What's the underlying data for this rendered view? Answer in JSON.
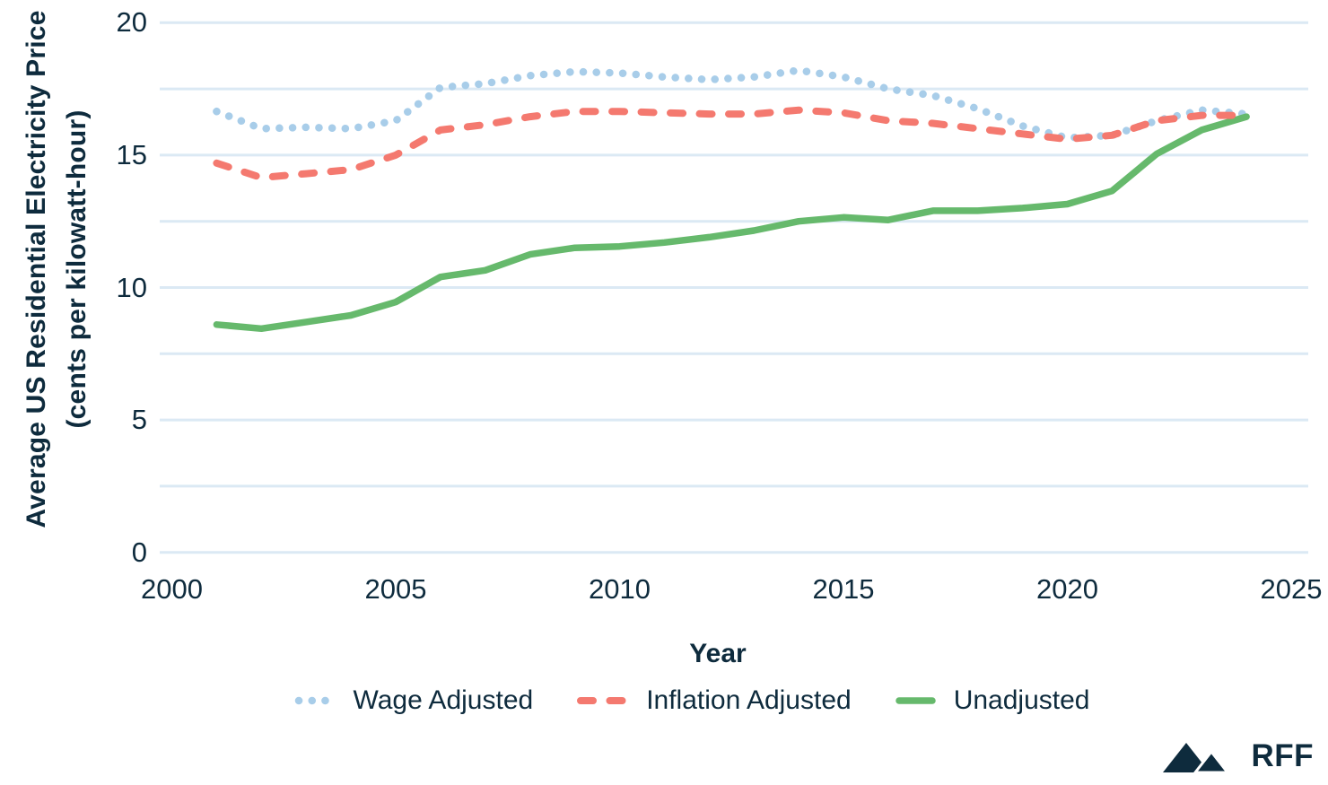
{
  "chart_data": {
    "type": "line",
    "title": "",
    "ylabel_line1": "Average US Residential Electricity Price",
    "ylabel_line2": "(cents per kilowatt-hour)",
    "xlabel": "Year",
    "xlim": [
      2000,
      2025
    ],
    "ylim": [
      0,
      20
    ],
    "x_ticks": [
      2000,
      2005,
      2010,
      2015,
      2020,
      2025
    ],
    "y_ticks": [
      0,
      5,
      10,
      15,
      20
    ],
    "gridline_step": 2.5,
    "grid": "horizontal gridlines only, light blue",
    "legend_position": "bottom center",
    "years": [
      2001,
      2002,
      2003,
      2004,
      2005,
      2006,
      2007,
      2008,
      2009,
      2010,
      2011,
      2012,
      2013,
      2014,
      2015,
      2016,
      2017,
      2018,
      2019,
      2020,
      2021,
      2022,
      2023,
      2024
    ],
    "series": [
      {
        "name": "Wage Adjusted",
        "style": "dotted",
        "color": "#a8cde9",
        "values": [
          16.65,
          16.0,
          16.05,
          16.0,
          16.3,
          17.55,
          17.7,
          18.0,
          18.15,
          18.1,
          17.95,
          17.85,
          17.95,
          18.2,
          17.95,
          17.5,
          17.25,
          16.75,
          16.1,
          15.65,
          15.75,
          16.3,
          16.7,
          16.55
        ]
      },
      {
        "name": "Inflation Adjusted",
        "style": "dashed",
        "color": "#f4796f",
        "values": [
          14.7,
          14.15,
          14.3,
          14.45,
          15.0,
          15.95,
          16.15,
          16.45,
          16.65,
          16.65,
          16.6,
          16.55,
          16.55,
          16.7,
          16.6,
          16.3,
          16.2,
          16.0,
          15.8,
          15.6,
          15.75,
          16.3,
          16.5,
          16.5
        ]
      },
      {
        "name": "Unadjusted",
        "style": "solid",
        "color": "#66b96c",
        "values": [
          8.6,
          8.45,
          8.7,
          8.95,
          9.45,
          10.4,
          10.65,
          11.25,
          11.5,
          11.55,
          11.7,
          11.9,
          12.15,
          12.5,
          12.65,
          12.55,
          12.9,
          12.9,
          13.0,
          13.15,
          13.65,
          15.05,
          15.95,
          16.45
        ]
      }
    ]
  },
  "branding": {
    "logo_text": "RFF"
  },
  "colors": {
    "text_navy": "#0e2b3d",
    "gridline": "#dbe9f4",
    "wage_adjusted": "#a8cde9",
    "inflation_adjusted": "#f4796f",
    "unadjusted": "#66b96c",
    "background": "#ffffff"
  }
}
